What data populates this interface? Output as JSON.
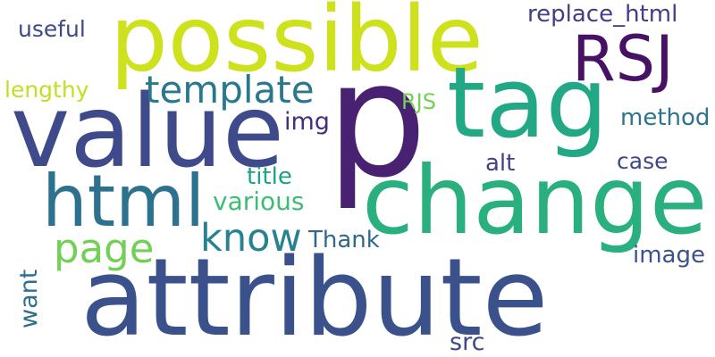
{
  "words": [
    {
      "text": "possible",
      "color": "#cde11d"
    },
    {
      "text": "p",
      "color": "#482173"
    },
    {
      "text": "tag",
      "color": "#22a884"
    },
    {
      "text": "RSJ",
      "color": "#471164"
    },
    {
      "text": "value",
      "color": "#3e4a89"
    },
    {
      "text": "change",
      "color": "#2ab07f"
    },
    {
      "text": "attribute",
      "color": "#3b518b"
    },
    {
      "text": "html",
      "color": "#2c718e"
    },
    {
      "text": "template",
      "color": "#2a788e"
    },
    {
      "text": "replace_html",
      "color": "#433e85"
    },
    {
      "text": "useful",
      "color": "#3e4989"
    },
    {
      "text": "lengthy",
      "color": "#c2df23"
    },
    {
      "text": "RJS",
      "color": "#75d054"
    },
    {
      "text": "img",
      "color": "#46307e"
    },
    {
      "text": "method",
      "color": "#2c738e"
    },
    {
      "text": "alt",
      "color": "#424086"
    },
    {
      "text": "case",
      "color": "#3f4788"
    },
    {
      "text": "title",
      "color": "#1fa088"
    },
    {
      "text": "various",
      "color": "#3dbc74"
    },
    {
      "text": "page",
      "color": "#73d056"
    },
    {
      "text": "know",
      "color": "#26828e"
    },
    {
      "text": "Thank",
      "color": "#31688e"
    },
    {
      "text": "image",
      "color": "#3b528b"
    },
    {
      "text": "want",
      "color": "#2e6f8e"
    },
    {
      "text": "src",
      "color": "#404688"
    }
  ]
}
